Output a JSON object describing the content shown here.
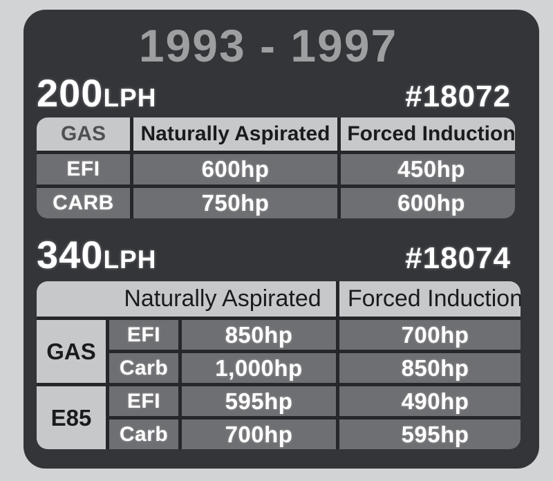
{
  "title": "1993 - 1997",
  "sections": [
    {
      "model": "200",
      "unit": "LPH",
      "part_number": "#18072"
    },
    {
      "model": "340",
      "unit": "LPH",
      "part_number": "#18074"
    }
  ],
  "chart_data": [
    {
      "type": "table",
      "title": "200LPH",
      "part_number": "#18072",
      "headers": [
        "GAS",
        "Naturally Aspirated",
        "Forced Induction"
      ],
      "rows": [
        [
          "EFI",
          "600hp",
          "450hp"
        ],
        [
          "CARB",
          "750hp",
          "600hp"
        ]
      ]
    },
    {
      "type": "table",
      "title": "340LPH",
      "part_number": "#18074",
      "headers": [
        "Naturally Aspirated",
        "Forced Induction"
      ],
      "row_groups": [
        {
          "fuel": "GAS",
          "rows": [
            [
              "EFI",
              "850hp",
              "700hp"
            ],
            [
              "Carb",
              "1,000hp",
              "850hp"
            ]
          ]
        },
        {
          "fuel": "E85",
          "rows": [
            [
              "EFI",
              "595hp",
              "490hp"
            ],
            [
              "Carb",
              "700hp",
              "595hp"
            ]
          ]
        }
      ]
    }
  ],
  "colors": {
    "page_bg": "#d2d3d5",
    "card_bg": "#333539",
    "title_text": "#9d9fa1",
    "header_cell_bg": "#c7c8ca",
    "body_cell_bg": "#6e6f72",
    "divider": "#26272a",
    "white_text": "#ffffff",
    "dark_text": "#1a1b1d",
    "gas_header_text": "#4e5053"
  }
}
